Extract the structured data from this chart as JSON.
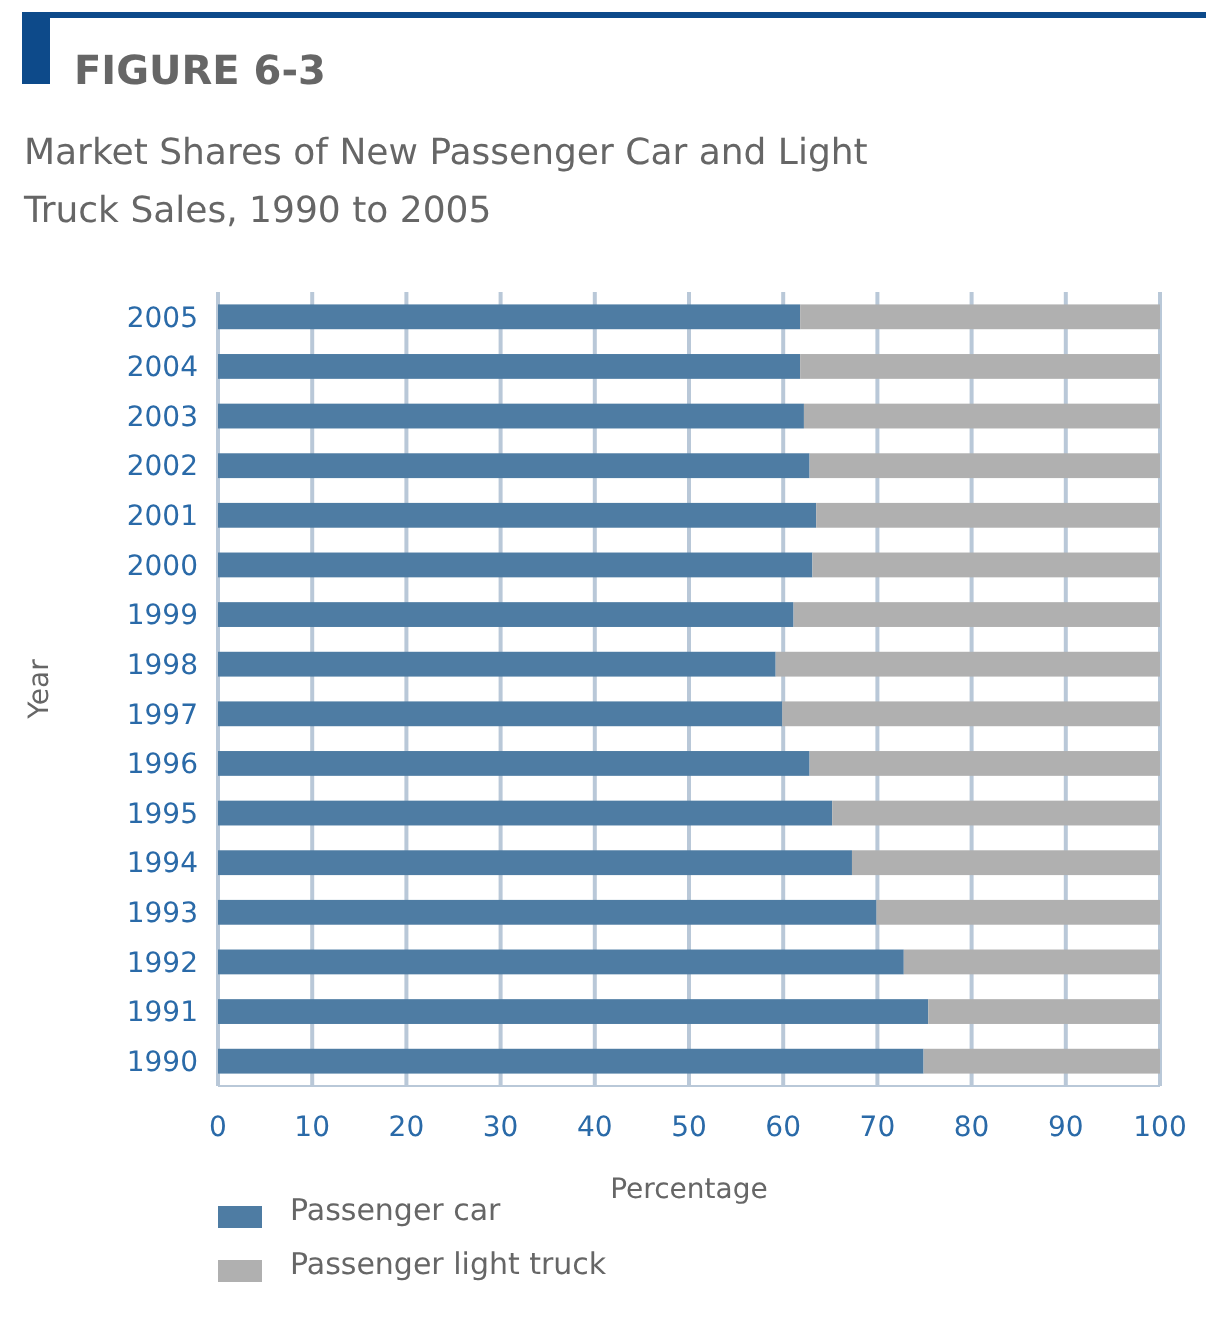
{
  "chart_data": {
    "type": "bar",
    "orientation": "horizontal",
    "stacked": true,
    "title": "FIGURE 6-3",
    "subtitle": "Market Shares of New Passenger Car and Light Truck Sales, 1990 to 2005",
    "xlabel": "Percentage",
    "ylabel": "Year",
    "categories": [
      "2005",
      "2004",
      "2003",
      "2002",
      "2001",
      "2000",
      "1999",
      "1998",
      "1997",
      "1996",
      "1995",
      "1994",
      "1993",
      "1992",
      "1991",
      "1990"
    ],
    "series": [
      {
        "name": "Passenger car",
        "color": "#4e7ca3",
        "values": [
          61.8,
          61.8,
          62.2,
          62.8,
          63.5,
          63.1,
          61.1,
          59.2,
          59.9,
          62.8,
          65.2,
          67.3,
          69.9,
          72.8,
          75.4,
          74.9
        ]
      },
      {
        "name": "Passenger light truck",
        "color": "#b0b0b0",
        "values": [
          38.2,
          38.2,
          37.8,
          37.2,
          36.5,
          36.9,
          38.9,
          40.8,
          40.1,
          37.2,
          34.8,
          32.7,
          30.1,
          27.2,
          24.6,
          25.1
        ]
      }
    ],
    "xlim": [
      0,
      100
    ],
    "xticks": [
      0,
      10,
      20,
      30,
      40,
      50,
      60,
      70,
      80,
      90,
      100
    ],
    "grid": "x",
    "legend": "bottom left"
  }
}
